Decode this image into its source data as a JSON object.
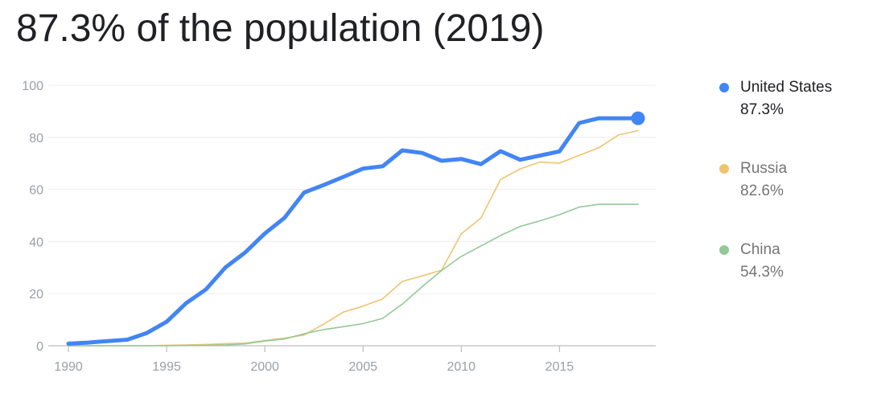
{
  "title": "87.3% of the population (2019)",
  "chart_data": {
    "type": "line",
    "xlabel": "",
    "ylabel": "",
    "xlim": [
      1990,
      2019
    ],
    "ylim": [
      0,
      100
    ],
    "x_ticks": [
      1990,
      1995,
      2000,
      2005,
      2010,
      2015
    ],
    "y_ticks": [
      0,
      20,
      40,
      60,
      80,
      100
    ],
    "grid": true,
    "legend_position": "right",
    "x": [
      1990,
      1991,
      1992,
      1993,
      1994,
      1995,
      1996,
      1997,
      1998,
      1999,
      2000,
      2001,
      2002,
      2003,
      2004,
      2005,
      2006,
      2007,
      2008,
      2009,
      2010,
      2011,
      2012,
      2013,
      2014,
      2015,
      2016,
      2017,
      2018,
      2019
    ],
    "series": [
      {
        "name": "United States",
        "value_label": "87.3%",
        "color": "#4285f4",
        "emphasis": true,
        "values": [
          0.8,
          1.2,
          1.8,
          2.3,
          4.9,
          9.2,
          16.4,
          21.6,
          30.1,
          35.8,
          43.1,
          49.1,
          58.8,
          61.7,
          64.8,
          68.0,
          68.9,
          75.0,
          74.0,
          71.0,
          71.7,
          69.7,
          74.7,
          71.4,
          73.0,
          74.6,
          85.5,
          87.3,
          87.3,
          87.3
        ]
      },
      {
        "name": "Russia",
        "value_label": "82.6%",
        "color": "#f0c46d",
        "emphasis": false,
        "values": [
          0.0,
          0.0,
          0.0,
          0.0,
          0.0,
          0.2,
          0.3,
          0.5,
          0.8,
          1.0,
          2.0,
          2.9,
          4.1,
          8.3,
          12.9,
          15.2,
          18.0,
          24.7,
          26.8,
          29.0,
          43.0,
          49.0,
          63.8,
          67.9,
          70.5,
          70.1,
          73.1,
          76.0,
          80.9,
          82.6
        ]
      },
      {
        "name": "China",
        "value_label": "54.3%",
        "color": "#93c997",
        "emphasis": false,
        "values": [
          0.0,
          0.0,
          0.0,
          0.0,
          0.0,
          0.0,
          0.1,
          0.2,
          0.3,
          0.7,
          1.8,
          2.6,
          4.6,
          6.2,
          7.3,
          8.5,
          10.5,
          16.0,
          22.6,
          28.9,
          34.3,
          38.3,
          42.3,
          45.8,
          47.9,
          50.3,
          53.2,
          54.3,
          54.3,
          54.3
        ]
      }
    ]
  }
}
